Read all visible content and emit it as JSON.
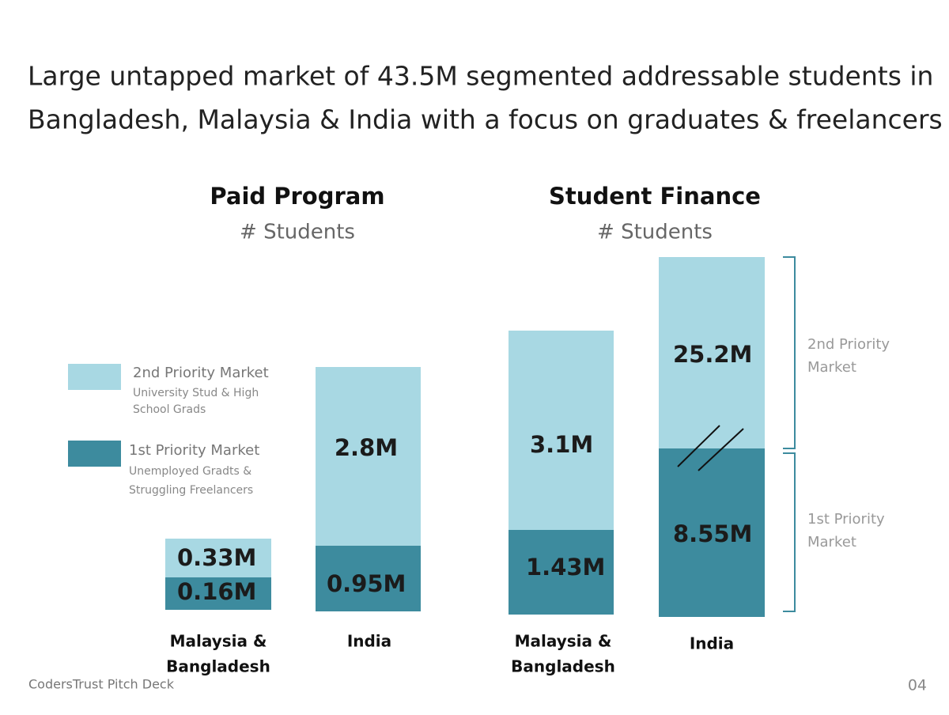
{
  "title_lines": [
    "Large untapped market of 43.5M segmented addressable students in",
    "Bangladesh, Malaysia & India with a focus on graduates & freelancers"
  ],
  "panels": [
    {
      "heading": "Paid Program",
      "subheading": "# Students",
      "groups": [
        {
          "label_lines": [
            "Malaysia &",
            "Bangladesh"
          ],
          "second_priority": "0.33M",
          "first_priority": "0.16M"
        },
        {
          "label_lines": [
            "India"
          ],
          "second_priority": "2.8M",
          "first_priority": "0.95M"
        }
      ]
    },
    {
      "heading": "Student Finance",
      "subheading": "# Students",
      "groups": [
        {
          "label_lines": [
            "Malaysia &",
            "Bangladesh"
          ],
          "second_priority": "3.1M",
          "first_priority": "1.43M"
        },
        {
          "label_lines": [
            "India"
          ],
          "second_priority": "25.2M",
          "first_priority": "8.55M"
        }
      ]
    }
  ],
  "legend": [
    {
      "name": "2nd Priority Market",
      "description_lines": [
        "University Stud & High",
        "School Grads"
      ]
    },
    {
      "name": "1st Priority Market",
      "description_lines": [
        "Unemployed Gradts &",
        "Struggling Freelancers"
      ]
    }
  ],
  "brackets": [
    {
      "label_lines": [
        "2nd Priority",
        "Market"
      ]
    },
    {
      "label_lines": [
        "1st Priority",
        "Market"
      ]
    }
  ],
  "footer": "CodersTrust Pitch Deck",
  "page_number": "04"
}
